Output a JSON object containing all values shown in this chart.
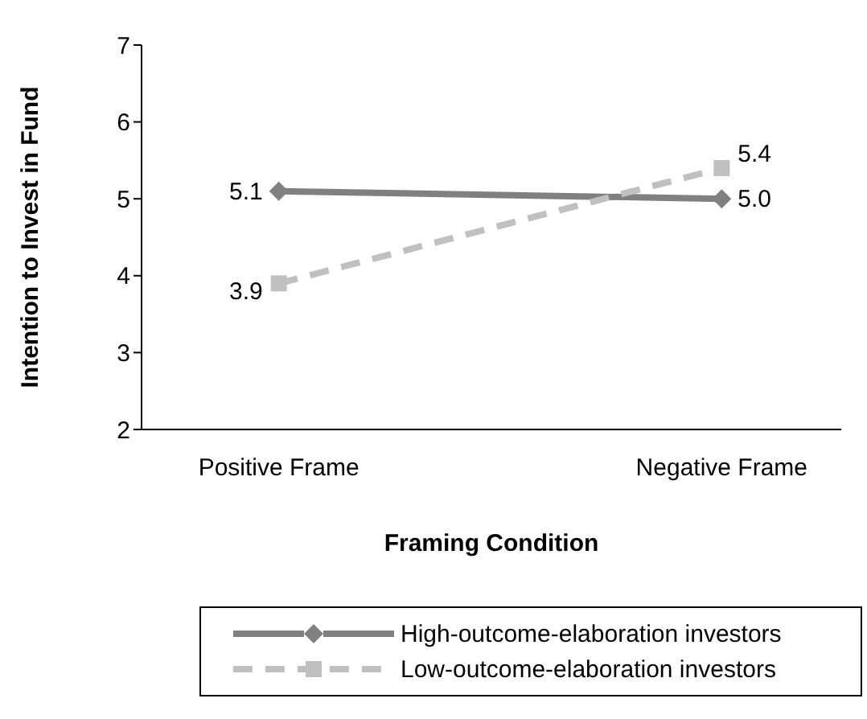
{
  "chart_data": {
    "type": "line",
    "xlabel": "Framing Condition",
    "ylabel": "Intention to Invest in Fund",
    "categories": [
      "Positive Frame",
      "Negative Frame"
    ],
    "series": [
      {
        "name": "High-outcome-elaboration investors",
        "color": "#808080",
        "values": [
          5.1,
          5.0
        ],
        "value_labels": [
          "5.1",
          "5.0"
        ],
        "marker": "diamond",
        "line_style": "solid"
      },
      {
        "name": "Low-outcome-elaboration investors",
        "color": "#c0c0c0",
        "values": [
          3.9,
          5.4
        ],
        "value_labels": [
          "3.9",
          "5.4"
        ],
        "marker": "square",
        "line_style": "dashed"
      }
    ],
    "ylim": [
      2,
      7
    ],
    "yticks": [
      2,
      3,
      4,
      5,
      6,
      7
    ],
    "legend": "bottom"
  }
}
